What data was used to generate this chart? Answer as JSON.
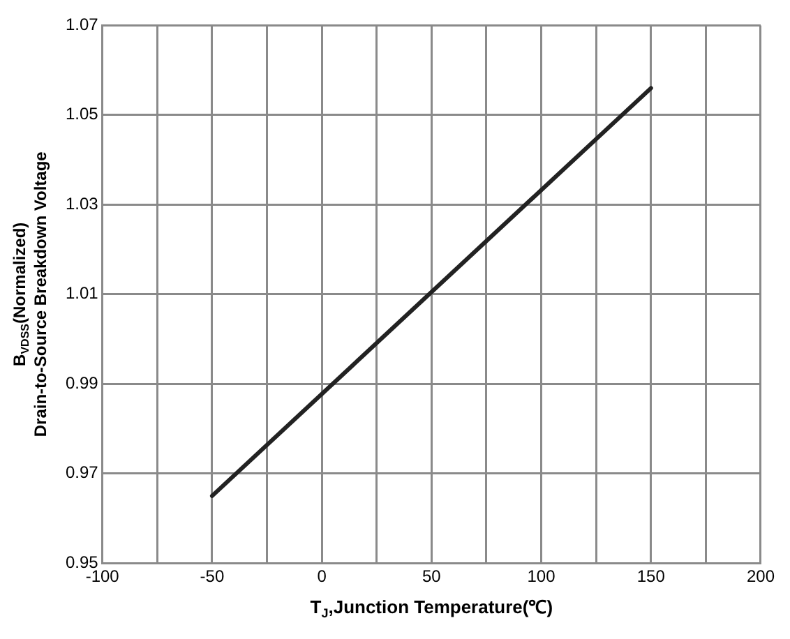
{
  "chart_data": {
    "type": "line",
    "xlabel": "T$_{J}$,Junction Temperature(℃)",
    "ylabel": "B$_{VDSS}$(Normalized)\nDrain-to-Source Breakdown Voltage",
    "x": [
      -50,
      150
    ],
    "series": [
      {
        "color": "#222222",
        "values": [
          0.965,
          1.056
        ]
      }
    ],
    "xlim": [
      -100,
      200
    ],
    "xticks": [
      -100,
      {
        "value": -75,
        "label": null
      },
      -50,
      {
        "value": -25,
        "label": null
      },
      0,
      {
        "value": 25,
        "label": null
      },
      50,
      {
        "value": 75,
        "label": null
      },
      100,
      {
        "value": 125,
        "label": null
      },
      150,
      {
        "value": 175,
        "label": null
      },
      200
    ],
    "ylim": [
      0.95,
      1.07
    ],
    "yticks": [
      0.95,
      0.97,
      0.99,
      1.01,
      1.03,
      1.05,
      1.07
    ],
    "grid": true,
    "legend": false,
    "marker": "none",
    "line_style": "solid"
  }
}
